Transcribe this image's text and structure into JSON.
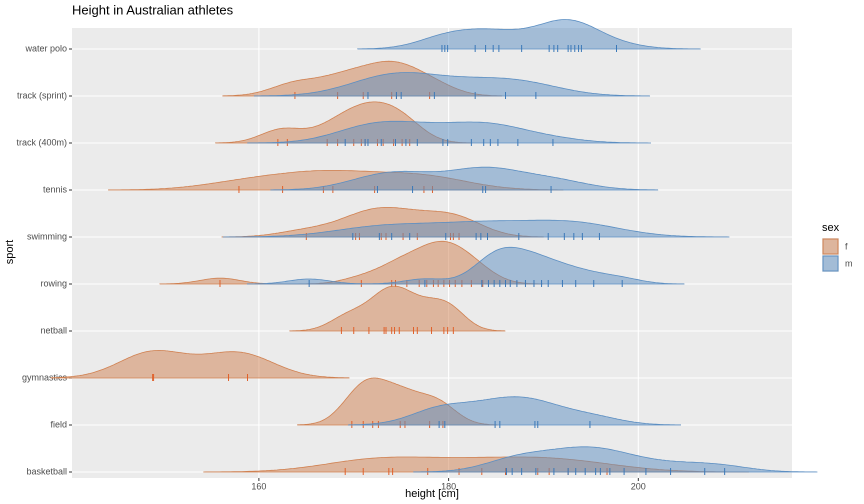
{
  "chart_data": {
    "type": "ridgeline",
    "title": "Height in Australian athletes",
    "x_label": "height [cm]",
    "y_label": "sport",
    "legend_title": "sex",
    "categories": [
      "basketball",
      "field",
      "gymnastics",
      "netball",
      "rowing",
      "swimming",
      "tennis",
      "track (400m)",
      "track (sprint)",
      "water polo"
    ],
    "xlim": [
      140.3,
      216.2
    ],
    "xticks": [
      160,
      180,
      200
    ],
    "grid": true,
    "legend": "right",
    "series": [
      {
        "name": "f",
        "color": "#d08050",
        "rug_color": "#e0602a",
        "values": [
          [
            169.1,
            171,
            173.7,
            174.1,
            177.8,
            181.1,
            183.5,
            186,
            189.4,
            190.6,
            192.6,
            196.7
          ],
          [
            169.8,
            171,
            172,
            172.6,
            174.9,
            175.4,
            178,
            179.4
          ],
          [
            148.8,
            148.9,
            156.8,
            158.8
          ],
          [
            168.7,
            170,
            171.6,
            173.2,
            173.4,
            174,
            174.3,
            174.8,
            176.3,
            176.7,
            178.2,
            179.5,
            179.9,
            180.5
          ],
          [
            155.9,
            170.8,
            174,
            174.4,
            175.6,
            176.9,
            177.7,
            178.4,
            178.9,
            179.5,
            180.1,
            180.7,
            181.4,
            182.4,
            183.6
          ],
          [
            165,
            170.2,
            170.6,
            172.9,
            173.4,
            175.2,
            176.7,
            180.2,
            180.5,
            181.1
          ],
          [
            157.9,
            162.5,
            166.8,
            167.8,
            172.2,
            177.4,
            178.3
          ],
          [
            162,
            163,
            167.2,
            168.3,
            170,
            170.8,
            171.2,
            172.5,
            173.1,
            174.2,
            175.1,
            175.9
          ],
          [
            163.8,
            168.3,
            171,
            174,
            174.5,
            178
          ],
          []
        ]
      },
      {
        "name": "m",
        "color": "#5b8ec2",
        "rug_color": "#3a78b8",
        "values": [
          [
            186.1,
            186.7,
            187.7,
            189.2,
            191.1,
            192.6,
            193.4,
            194.4,
            195.5,
            196,
            197,
            198.5,
            200.8,
            203.4,
            207,
            209.1
          ],
          [
            179,
            179.6,
            184.9,
            185.4,
            189.1,
            189.4,
            194.9
          ],
          [],
          [],
          [
            165.3,
            177.5,
            183.5,
            184.2,
            184.8,
            185.4,
            186,
            186.5,
            187.2,
            188.1,
            189,
            189.8,
            190.5,
            192,
            193.4,
            195.3,
            198.3
          ],
          [
            169.9,
            172.7,
            174,
            175.9,
            179.7,
            182.9,
            183.4,
            184.1,
            187.4,
            190.5,
            192.2,
            193.2,
            194.1,
            195.9
          ],
          [
            172.5,
            176.2,
            183.6,
            183.9,
            190.8
          ],
          [
            169.1,
            171.2,
            171.5,
            172.9,
            174.4,
            175.5,
            176.7,
            179.4,
            179.9,
            182.4,
            183.7,
            184.4,
            185.2,
            187.3,
            191
          ],
          [
            171.5,
            174.5,
            175,
            178.5,
            182.8,
            186,
            189.2
          ],
          [
            179.3,
            179.6,
            179.9,
            182.8,
            183.9,
            184.7,
            185.3,
            187.7,
            190.6,
            191.1,
            191.5,
            192.6,
            192.9,
            193.3,
            193.7,
            194,
            197.7
          ]
        ]
      }
    ]
  }
}
